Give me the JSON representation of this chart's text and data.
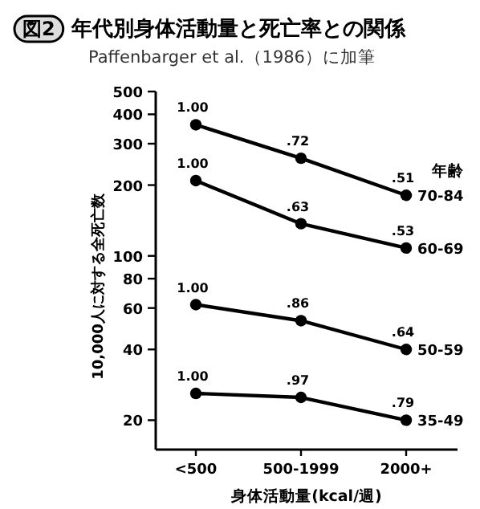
{
  "chart_data": {
    "type": "line",
    "title": "年代別身体活動量と死亡率との関係",
    "subtitle": "Paffenbarger et al.（1986）に加筆",
    "xlabel": "身体活動量(kcal/週)",
    "ylabel": "10,000人に対する全死亡数",
    "legend_title": "年齢",
    "annotations": [
      "図2",
      {
        "text": "1.00",
        "x": "<500",
        "y": 361
      },
      {
        "text": ".72",
        "x": "500-1999",
        "y": 260
      },
      {
        "text": ".51",
        "x": "2000+",
        "y": 181
      },
      {
        "text": "1.00",
        "x": "<500",
        "y": 209
      },
      {
        "text": ".63",
        "x": "500-1999",
        "y": 137
      },
      {
        "text": ".53",
        "x": "2000+",
        "y": 108
      },
      {
        "text": "1.00",
        "x": "<500",
        "y": 62
      },
      {
        "text": ".86",
        "x": "500-1999",
        "y": 53
      },
      {
        "text": ".64",
        "x": "2000+",
        "y": 40
      },
      {
        "text": "1.00",
        "x": "<500",
        "y": 26
      },
      {
        "text": ".97",
        "x": "500-1999",
        "y": 25
      },
      {
        "text": ".79",
        "x": "2000+",
        "y": 20
      }
    ],
    "categories": [
      "<500",
      "500-1999",
      "2000+"
    ],
    "series": [
      {
        "name": "70-84",
        "color": "#000000",
        "values": [
          361,
          260,
          181
        ]
      },
      {
        "name": "60-69",
        "color": "#000000",
        "values": [
          209,
          137,
          108
        ]
      },
      {
        "name": "50-59",
        "color": "#000000",
        "values": [
          62,
          53,
          40
        ]
      },
      {
        "name": "35-49",
        "color": "#000000",
        "values": [
          26,
          25,
          20
        ]
      }
    ],
    "log": true,
    "ylim": [
      15,
      500
    ],
    "yticks": [
      20,
      40,
      60,
      80,
      100,
      200,
      300,
      400,
      500
    ],
    "grid": false,
    "marker": "circle",
    "line_style": "solid"
  }
}
